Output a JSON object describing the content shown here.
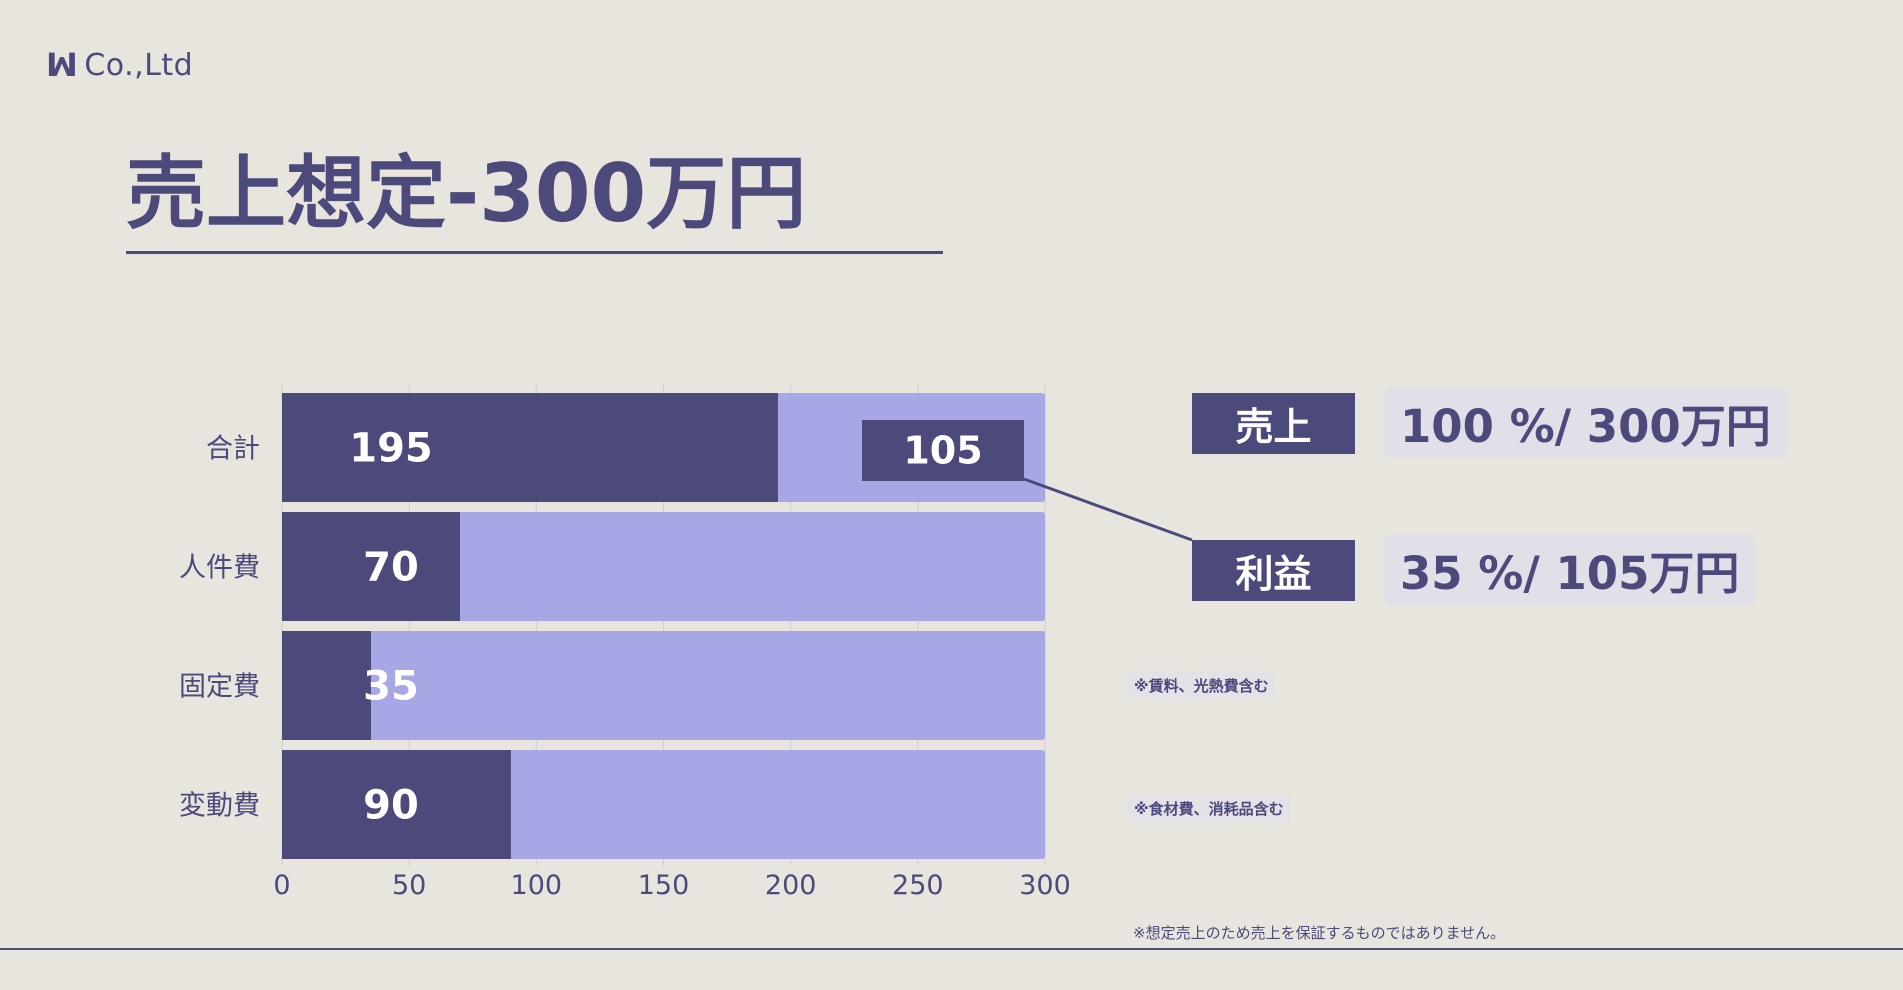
{
  "logo": {
    "mark": "ꟽ",
    "text": "Co.,Ltd"
  },
  "title": "売上想定-300万円",
  "colors": {
    "dark": "#4b4a7a",
    "light": "#a7a7e6",
    "background": "#e8e5df"
  },
  "legend": [
    {
      "label": "売上",
      "value": "100 %/ 300万円"
    },
    {
      "label": "利益",
      "value": "35 %/ 105万円"
    }
  ],
  "notes": {
    "fixed_cost": "※賃料、光熱費含む",
    "variable_cost": "※食材費、消耗品含む"
  },
  "disclaimer": "※想定売上のため売上を保証するものではありません。",
  "chart_data": {
    "type": "bar",
    "orientation": "horizontal",
    "stacked": true,
    "categories": [
      "合計",
      "人件費",
      "固定費",
      "変動費"
    ],
    "series": [
      {
        "values": [
          195,
          70,
          35,
          90
        ]
      },
      {
        "values": [
          105,
          230,
          265,
          210
        ]
      }
    ],
    "data_labels": [
      "195",
      "70",
      "35",
      "90"
    ],
    "callout_label": "105",
    "xlim": [
      0,
      300
    ],
    "xticks": [
      0,
      50,
      100,
      150,
      200,
      250,
      300
    ],
    "grid": true
  }
}
